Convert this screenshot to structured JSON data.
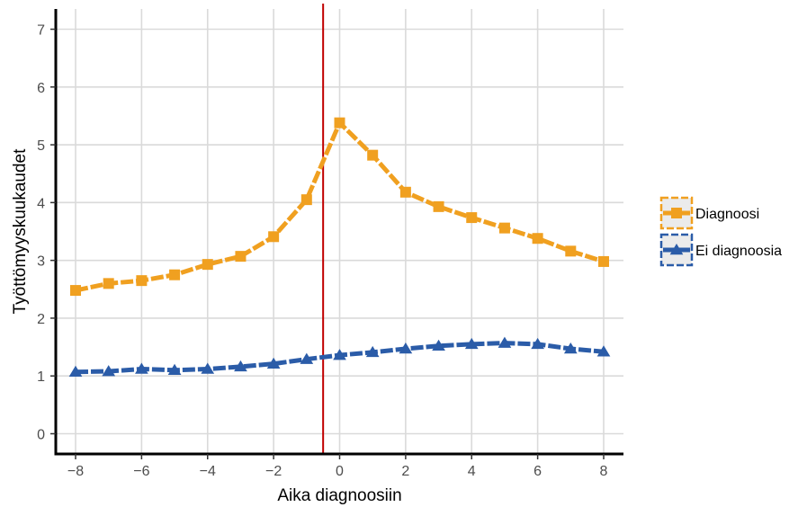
{
  "chart_data": {
    "type": "line",
    "xlabel": "Aika diagnoosiin",
    "ylabel": "Työttömyyskuukaudet",
    "xlim": [
      -8.6,
      8.6
    ],
    "ylim": [
      -0.35,
      7.35
    ],
    "x_ticks": [
      -8,
      -6,
      -4,
      -2,
      0,
      2,
      4,
      6,
      8
    ],
    "y_ticks": [
      0,
      1,
      2,
      3,
      4,
      5,
      6,
      7
    ],
    "x_tick_labels": [
      "−8",
      "−6",
      "−4",
      "−2",
      "0",
      "2",
      "4",
      "6",
      "8"
    ],
    "y_tick_labels": [
      "0",
      "1",
      "2",
      "3",
      "4",
      "5",
      "6",
      "7"
    ],
    "grid": true,
    "legend_position": "right",
    "vline": {
      "x": -0.5,
      "color": "#c00000"
    },
    "x": [
      -8,
      -7,
      -6,
      -5,
      -4,
      -3,
      -2,
      -1,
      0,
      1,
      2,
      3,
      4,
      5,
      6,
      7,
      8
    ],
    "series": [
      {
        "name": "Diagnoosi",
        "color": "#f0a020",
        "marker": "square",
        "values": [
          2.48,
          2.6,
          2.65,
          2.75,
          2.93,
          3.07,
          3.41,
          4.05,
          5.38,
          4.82,
          4.18,
          3.93,
          3.74,
          3.56,
          3.38,
          3.16,
          2.98
        ]
      },
      {
        "name": "Ei diagnoosia",
        "color": "#2b5ca8",
        "marker": "triangle",
        "values": [
          1.07,
          1.08,
          1.12,
          1.1,
          1.12,
          1.16,
          1.21,
          1.29,
          1.36,
          1.41,
          1.47,
          1.52,
          1.55,
          1.57,
          1.55,
          1.47,
          1.42
        ]
      }
    ]
  }
}
